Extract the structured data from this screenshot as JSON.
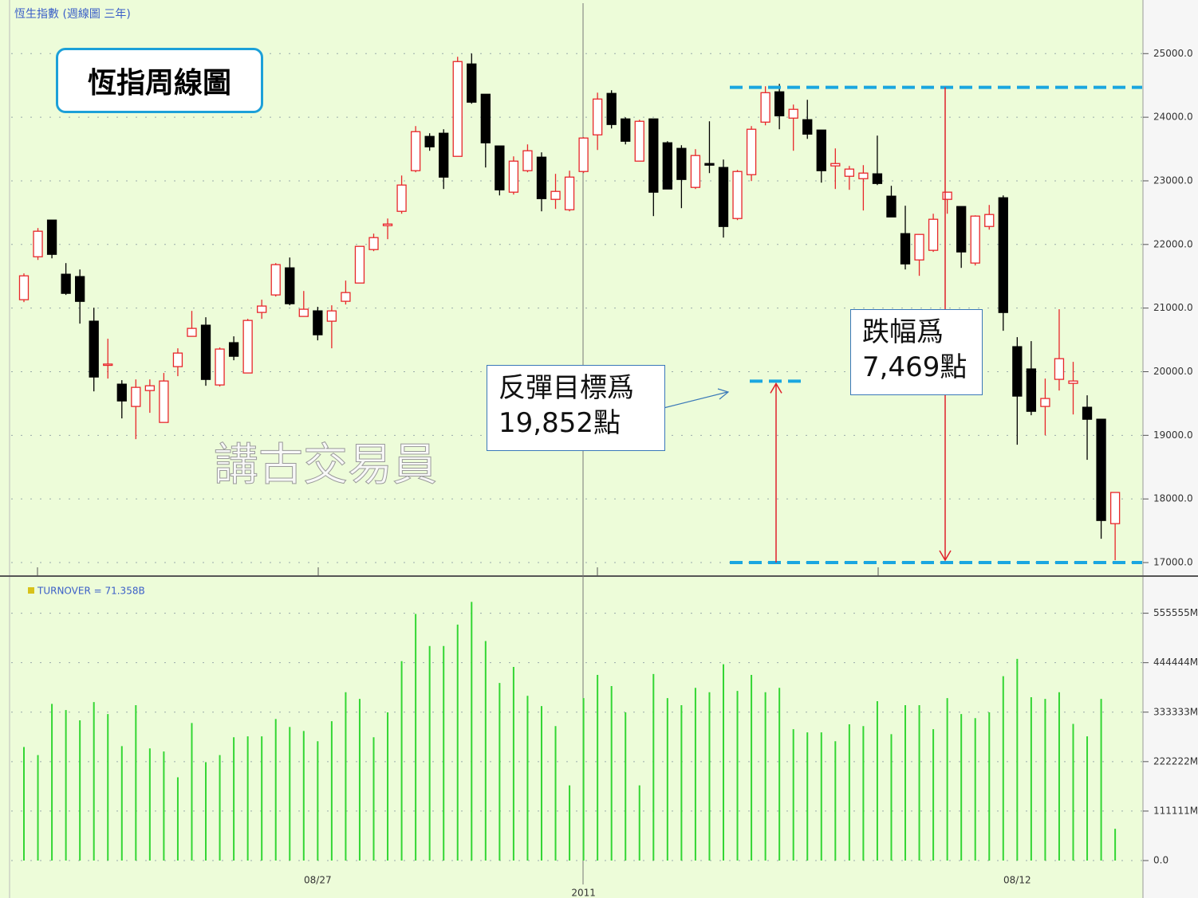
{
  "chart_data": [
    {
      "type": "candlestick",
      "title": "恆生指數 (週線圖 三年)",
      "up_color": "#e8262a",
      "down_color": "#000000",
      "open": [
        21132,
        21807,
        22383,
        21532,
        21495,
        20794,
        20100,
        19804,
        19454,
        19704,
        19203,
        20080,
        20556,
        20731,
        19792,
        20456,
        19980,
        20932,
        21207,
        21632,
        20869,
        20956,
        20794,
        21107,
        21394,
        21920,
        22296,
        22521,
        23160,
        23698,
        23748,
        23385,
        24837,
        24361,
        23548,
        22822,
        23160,
        23372,
        22709,
        22546,
        23147,
        23723,
        24374,
        23973,
        23310,
        23973,
        23598,
        23510,
        22897,
        23272,
        23210,
        22408,
        23097,
        23923,
        24399,
        23986,
        23961,
        23798,
        23235,
        23072,
        23034,
        23110,
        22759,
        22170,
        21757,
        21908,
        22709,
        22596,
        21708,
        22283,
        22734,
        20393,
        20043,
        19454,
        19880,
        19817,
        19441,
        19253,
        17612
      ],
      "high": [
        21545,
        22258,
        22383,
        21707,
        21607,
        21006,
        20518,
        19867,
        19879,
        19879,
        19980,
        20368,
        20956,
        20856,
        20381,
        20556,
        20831,
        21132,
        21707,
        21795,
        21269,
        21019,
        21044,
        21432,
        21970,
        22170,
        22408,
        23084,
        23861,
        23748,
        23811,
        24950,
        25000,
        24361,
        23548,
        23385,
        23573,
        23448,
        23110,
        23160,
        23686,
        24386,
        24424,
        23998,
        23961,
        23973,
        23623,
        23560,
        23498,
        23936,
        23335,
        23172,
        23861,
        24487,
        24524,
        24199,
        24274,
        23798,
        23510,
        23235,
        23247,
        23711,
        22922,
        22609,
        22158,
        22483,
        22822,
        22596,
        22458,
        22621,
        22771,
        20543,
        20481,
        19892,
        20982,
        20155,
        19629,
        19253,
        18102
      ],
      "low": [
        21094,
        21757,
        21782,
        21207,
        20756,
        19691,
        19892,
        19266,
        18940,
        19354,
        19203,
        19930,
        20556,
        19779,
        19767,
        20180,
        19980,
        20831,
        21182,
        21044,
        20869,
        20493,
        20368,
        21056,
        21394,
        21895,
        22083,
        22483,
        23135,
        23473,
        22872,
        23385,
        24212,
        23210,
        22771,
        22784,
        23135,
        22521,
        22559,
        22521,
        23122,
        23485,
        23823,
        23573,
        23310,
        22446,
        22872,
        22571,
        22872,
        23122,
        22108,
        22383,
        22997,
        23873,
        23811,
        23473,
        23660,
        22972,
        22872,
        22859,
        22534,
        22934,
        22433,
        21607,
        21507,
        21883,
        22483,
        21632,
        21670,
        22233,
        20643,
        18853,
        19316,
        19003,
        19704,
        19328,
        18615,
        17374,
        17037
      ],
      "close": [
        21507,
        22208,
        21845,
        21232,
        21106,
        19917,
        20120,
        19541,
        19754,
        19779,
        19854,
        20293,
        20681,
        19879,
        20356,
        20243,
        20806,
        21032,
        21683,
        21069,
        20982,
        20581,
        20956,
        21244,
        21970,
        22108,
        22321,
        22934,
        23773,
        23535,
        23059,
        24875,
        24237,
        23598,
        22859,
        23310,
        23473,
        22721,
        22834,
        23059,
        23673,
        24286,
        23886,
        23623,
        23936,
        22822,
        22872,
        23022,
        23398,
        23247,
        22283,
        23147,
        23811,
        24386,
        24023,
        24124,
        23735,
        23160,
        23272,
        23185,
        23122,
        22959,
        22433,
        21695,
        22158,
        22396,
        22822,
        21883,
        22446,
        22471,
        20931,
        19617,
        19378,
        19579,
        20205,
        19854,
        19253,
        17662,
        18102
      ],
      "ylim": [
        16800,
        25780
      ],
      "yticks": [
        {
          "value": 17000,
          "label": "17000.0"
        },
        {
          "value": 18000,
          "label": "18000.0"
        },
        {
          "value": 19000,
          "label": "19000.0"
        },
        {
          "value": 20000,
          "label": "20000.0"
        },
        {
          "value": 21000,
          "label": "21000.0"
        },
        {
          "value": 22000,
          "label": "22000.0"
        },
        {
          "value": 23000,
          "label": "23000.0"
        },
        {
          "value": 24000,
          "label": "24000.0"
        },
        {
          "value": 25000,
          "label": "25000.0"
        }
      ],
      "grid": true,
      "reference_lines": [
        24469,
        17000
      ],
      "target_line": 19852,
      "reference_color": "#1aa6e0",
      "arrow_color": "#e0202a",
      "box_title": "恆指周線圖",
      "rebound_note": [
        "反彈目標爲",
        "19,852點"
      ],
      "drop_note": [
        "跌幅爲",
        "7,469點"
      ],
      "watermark": "講古交易員"
    },
    {
      "type": "bar",
      "categories": [
        null,
        null,
        null,
        null,
        null,
        null,
        null,
        null,
        null,
        null,
        null,
        null,
        null,
        null,
        null,
        null,
        null,
        null,
        null,
        null,
        null,
        "08/27",
        null,
        null,
        null,
        null,
        null,
        null,
        null,
        null,
        null,
        null,
        null,
        null,
        null,
        null,
        null,
        null,
        null,
        null,
        "2011",
        null,
        null,
        null,
        null,
        null,
        null,
        null,
        null,
        null,
        null,
        null,
        null,
        null,
        null,
        null,
        null,
        null,
        null,
        null,
        null,
        null,
        null,
        null,
        null,
        null,
        null,
        null,
        null,
        null,
        null,
        "08/12",
        null,
        null,
        null,
        null,
        null,
        null,
        null
      ],
      "series": [
        {
          "name": "TURNOVER = 71.358B",
          "color": "#33d633",
          "values": [
            255000,
            237000,
            352000,
            338000,
            315000,
            356000,
            329000,
            257000,
            349000,
            252000,
            245000,
            187000,
            309000,
            221000,
            237000,
            277000,
            279000,
            279000,
            318000,
            300000,
            291000,
            268000,
            313000,
            378000,
            363000,
            277000,
            333000,
            448000,
            554000,
            482000,
            482000,
            530000,
            581000,
            493000,
            399000,
            435000,
            370000,
            347000,
            302000,
            169000,
            365000,
            417000,
            392000,
            333000,
            169000,
            419000,
            365000,
            349000,
            388000,
            378000,
            441000,
            381000,
            417000,
            378000,
            388000,
            295000,
            288000,
            288000,
            268000,
            306000,
            302000,
            358000,
            284000,
            349000,
            349000,
            295000,
            365000,
            329000,
            320000,
            333000,
            414000,
            453000,
            367000,
            363000,
            378000,
            307000,
            279000,
            363000,
            71358
          ]
        }
      ],
      "ylim": [
        0,
        630000
      ],
      "yticks": [
        {
          "value": 0,
          "label": "0.0"
        },
        {
          "value": 111111,
          "label": "111111M"
        },
        {
          "value": 222222,
          "label": "222222M"
        },
        {
          "value": 333333,
          "label": "333333M"
        },
        {
          "value": 444444,
          "label": "444444M"
        },
        {
          "value": 555555,
          "label": "555555M"
        }
      ],
      "grid": true
    }
  ]
}
